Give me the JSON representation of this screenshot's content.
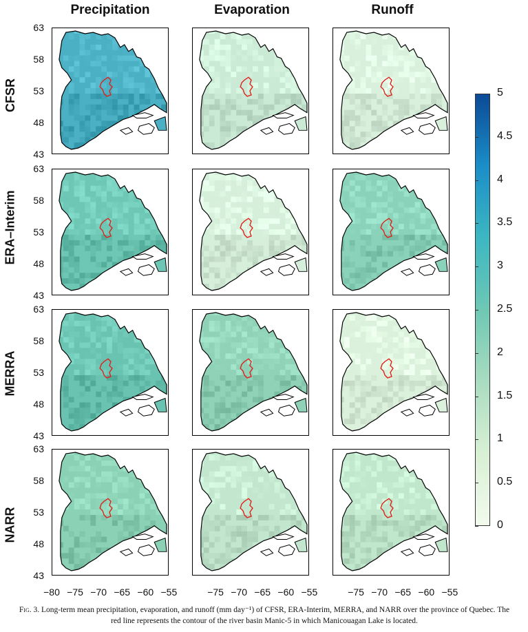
{
  "columns": [
    "Precipitation",
    "Evaporation",
    "Runoff"
  ],
  "rows": [
    "CFSR",
    "ERA–Interim",
    "MERRA",
    "NARR"
  ],
  "y_ticks": [
    "63",
    "58",
    "53",
    "48",
    "43"
  ],
  "x_ticks": [
    "−80",
    "−75",
    "−70",
    "−65",
    "−60",
    "−55"
  ],
  "colorbar": {
    "ticks": [
      "5",
      "4.5",
      "4",
      "3.5",
      "3",
      "2.5",
      "2",
      "1.5",
      "1",
      "0.5",
      "0"
    ],
    "colors": [
      "#f2faed",
      "#d8f0d4",
      "#a9dcc0",
      "#6ec8b4",
      "#3cb7c2",
      "#1b8ec8",
      "#0b4a96"
    ]
  },
  "panel_colors": {
    "CFSR": {
      "Precipitation": "#4cb0c4",
      "Evaporation": "#cbead5",
      "Runoff": "#d8f0dc"
    },
    "ERA–Interim": {
      "Precipitation": "#6dc7b4",
      "Evaporation": "#d6efdb",
      "Runoff": "#8ad2b9"
    },
    "MERRA": {
      "Precipitation": "#6ac3b1",
      "Evaporation": "#8fd2b8",
      "Runoff": "#dcf1dc"
    },
    "NARR": {
      "Precipitation": "#8ad1b6",
      "Evaporation": "#c2e7ce",
      "Runoff": "#c0e6cc"
    }
  },
  "basin_color": "#e0201a",
  "caption": {
    "fig_label": "Fig. 3.",
    "text": " Long-term mean precipitation, evaporation, and runoff (mm day⁻¹) of CFSR, ERA-Interim, MERRA, and NARR over the province of Quebec. The red line represents the contour of the river basin Manic-5 in which Manicouagan Lake is located."
  }
}
